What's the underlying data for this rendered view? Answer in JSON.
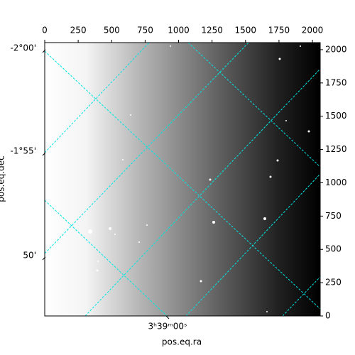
{
  "chart_data": {
    "type": "image",
    "x_label": "pos.eq.ra",
    "y_label": "pos.eq.dec",
    "xlim": [
      0,
      2058
    ],
    "xticks": [
      0,
      250,
      500,
      750,
      1000,
      1250,
      1500,
      1750,
      2000
    ],
    "ylim": [
      0,
      2053
    ],
    "yticks": [
      0,
      250,
      500,
      750,
      1000,
      1250,
      1500,
      1750,
      2000
    ],
    "ra_ticks": [
      "3ʰ39ᵐ00ˢ"
    ],
    "dec_ticks": [
      "-2°00'",
      "-1°55'",
      "50'"
    ],
    "grid_color": "#00e5e5"
  }
}
